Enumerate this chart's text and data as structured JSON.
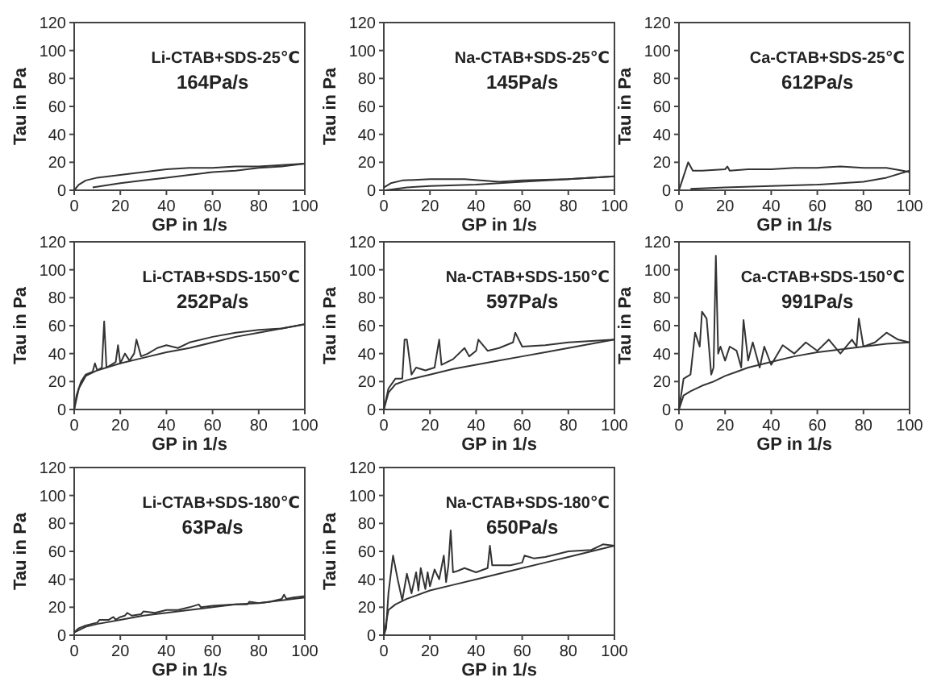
{
  "chart_data": [
    {
      "type": "line",
      "annotations": [
        "Li-CTAB+SDS-25℃",
        "164Pa/s"
      ],
      "xlabel": "GP  in 1/s",
      "ylabel": "Tau  in Pa",
      "xlim": [
        0,
        100
      ],
      "ylim": [
        0,
        120
      ],
      "xticks": [
        0,
        20,
        40,
        60,
        80,
        100
      ],
      "yticks": [
        0,
        20,
        40,
        60,
        80,
        100,
        120
      ],
      "series": [
        {
          "color": "#333333",
          "x": [
            0,
            2,
            5,
            10,
            20,
            30,
            40,
            50,
            60,
            70,
            80,
            90,
            100
          ],
          "values": [
            0,
            4,
            7,
            9,
            11,
            13,
            15,
            16,
            16,
            17,
            17,
            18,
            19
          ]
        },
        {
          "color": "#333333",
          "x": [
            8,
            20,
            30,
            40,
            50,
            60,
            70,
            80,
            90,
            100
          ],
          "values": [
            2,
            5,
            7,
            9,
            11,
            13,
            14,
            16,
            17,
            19
          ]
        }
      ]
    },
    {
      "type": "line",
      "annotations": [
        "Na-CTAB+SDS-25℃",
        "145Pa/s"
      ],
      "xlabel": "GP  in 1/s",
      "ylabel": "Tau  in Pa",
      "xlim": [
        0,
        100
      ],
      "ylim": [
        0,
        120
      ],
      "xticks": [
        0,
        20,
        40,
        60,
        80,
        100
      ],
      "yticks": [
        0,
        20,
        40,
        60,
        80,
        100,
        120
      ],
      "series": [
        {
          "color": "#333333",
          "x": [
            0,
            3,
            8,
            20,
            35,
            50,
            60,
            80,
            100
          ],
          "values": [
            2,
            5,
            7,
            8,
            8,
            6,
            7,
            8,
            10
          ]
        },
        {
          "color": "#333333",
          "x": [
            1,
            10,
            20,
            40,
            60,
            80,
            100
          ],
          "values": [
            0,
            2,
            3,
            4,
            6,
            8,
            10
          ]
        }
      ]
    },
    {
      "type": "line",
      "annotations": [
        "Ca-CTAB+SDS-25℃",
        "612Pa/s"
      ],
      "xlabel": "GP  in 1/s",
      "ylabel": "Tau  in Pa",
      "xlim": [
        0,
        100
      ],
      "ylim": [
        0,
        120
      ],
      "xticks": [
        0,
        20,
        40,
        60,
        80,
        100
      ],
      "yticks": [
        0,
        20,
        40,
        60,
        80,
        100,
        120
      ],
      "series": [
        {
          "color": "#333333",
          "x": [
            0,
            2,
            4,
            6,
            10,
            20,
            21,
            22,
            30,
            40,
            50,
            60,
            70,
            80,
            90,
            97,
            100
          ],
          "values": [
            0,
            10,
            20,
            14,
            14,
            15,
            17,
            14,
            15,
            15,
            16,
            16,
            17,
            16,
            16,
            14,
            13
          ]
        },
        {
          "color": "#333333",
          "x": [
            5,
            20,
            40,
            60,
            80,
            90,
            100
          ],
          "values": [
            1,
            2,
            3,
            4,
            6,
            9,
            14
          ]
        }
      ]
    },
    {
      "type": "line",
      "annotations": [
        "Li-CTAB+SDS-150℃",
        "252Pa/s"
      ],
      "xlabel": "GP  in 1/s",
      "ylabel": "Tau  in Pa",
      "xlim": [
        0,
        100
      ],
      "ylim": [
        0,
        120
      ],
      "xticks": [
        0,
        20,
        40,
        60,
        80,
        100
      ],
      "yticks": [
        0,
        20,
        40,
        60,
        80,
        100,
        120
      ],
      "series": [
        {
          "color": "#333333",
          "x": [
            0,
            1,
            3,
            5,
            8,
            9,
            10,
            12,
            13,
            14,
            16,
            18,
            19,
            20,
            22,
            24,
            26,
            27,
            29,
            32,
            36,
            40,
            45,
            50,
            60,
            70,
            80,
            90,
            100
          ],
          "values": [
            0,
            10,
            20,
            25,
            27,
            33,
            28,
            30,
            63,
            30,
            32,
            34,
            46,
            33,
            40,
            35,
            40,
            50,
            38,
            40,
            44,
            46,
            44,
            48,
            52,
            55,
            57,
            58,
            61
          ]
        },
        {
          "color": "#333333",
          "x": [
            0,
            2,
            5,
            10,
            20,
            30,
            40,
            50,
            60,
            70,
            80,
            90,
            100
          ],
          "values": [
            0,
            15,
            24,
            28,
            33,
            37,
            41,
            44,
            48,
            52,
            55,
            58,
            61
          ]
        }
      ]
    },
    {
      "type": "line",
      "annotations": [
        "Na-CTAB+SDS-150℃",
        "597Pa/s"
      ],
      "xlabel": "GP  in 1/s",
      "ylabel": "Tau  in Pa",
      "xlim": [
        0,
        100
      ],
      "ylim": [
        0,
        120
      ],
      "xticks": [
        0,
        20,
        40,
        60,
        80,
        100
      ],
      "yticks": [
        0,
        20,
        40,
        60,
        80,
        100,
        120
      ],
      "series": [
        {
          "color": "#333333",
          "x": [
            0,
            2,
            5,
            8,
            9,
            10,
            12,
            14,
            18,
            22,
            24,
            25,
            30,
            35,
            37,
            40,
            41,
            45,
            50,
            56,
            57,
            60,
            70,
            80,
            90,
            100
          ],
          "values": [
            0,
            15,
            22,
            22,
            50,
            50,
            25,
            30,
            28,
            30,
            50,
            32,
            36,
            44,
            38,
            42,
            50,
            42,
            44,
            48,
            55,
            45,
            46,
            48,
            49,
            50
          ]
        },
        {
          "color": "#333333",
          "x": [
            0,
            2,
            5,
            10,
            20,
            30,
            40,
            50,
            60,
            70,
            80,
            90,
            100
          ],
          "values": [
            0,
            12,
            18,
            21,
            25,
            29,
            32,
            35,
            38,
            41,
            44,
            47,
            50
          ]
        }
      ]
    },
    {
      "type": "line",
      "annotations": [
        "Ca-CTAB+SDS-150℃",
        "991Pa/s"
      ],
      "xlabel": "GP  in 1/s",
      "ylabel": "Tau  in Pa",
      "xlim": [
        0,
        100
      ],
      "ylim": [
        0,
        120
      ],
      "xticks": [
        0,
        20,
        40,
        60,
        80,
        100
      ],
      "yticks": [
        0,
        20,
        40,
        60,
        80,
        100,
        120
      ],
      "series": [
        {
          "color": "#333333",
          "x": [
            0,
            2,
            5,
            7,
            9,
            10,
            12,
            14,
            15,
            16,
            17,
            18,
            20,
            22,
            25,
            27,
            28,
            30,
            32,
            35,
            37,
            40,
            45,
            50,
            55,
            60,
            65,
            70,
            75,
            77,
            78,
            80,
            85,
            90,
            95,
            100
          ],
          "values": [
            0,
            22,
            25,
            55,
            45,
            70,
            65,
            25,
            30,
            110,
            40,
            45,
            35,
            45,
            42,
            30,
            64,
            35,
            48,
            30,
            45,
            32,
            46,
            40,
            48,
            42,
            50,
            40,
            50,
            45,
            65,
            45,
            48,
            55,
            50,
            48
          ]
        },
        {
          "color": "#333333",
          "x": [
            0,
            2,
            5,
            10,
            15,
            20,
            25,
            30,
            40,
            50,
            60,
            70,
            80,
            90,
            100
          ],
          "values": [
            0,
            10,
            13,
            17,
            20,
            24,
            27,
            30,
            34,
            38,
            41,
            43,
            45,
            47,
            48
          ]
        }
      ]
    },
    {
      "type": "line",
      "annotations": [
        "Li-CTAB+SDS-180℃",
        "63Pa/s"
      ],
      "xlabel": "GP  in 1/s",
      "ylabel": "Tau  in Pa",
      "xlim": [
        0,
        100
      ],
      "ylim": [
        0,
        120
      ],
      "xticks": [
        0,
        20,
        40,
        60,
        80,
        100
      ],
      "yticks": [
        0,
        20,
        40,
        60,
        80,
        100,
        120
      ],
      "series": [
        {
          "color": "#333333",
          "x": [
            0,
            2,
            5,
            10,
            11,
            15,
            17,
            18,
            20,
            22,
            23,
            25,
            29,
            30,
            35,
            40,
            45,
            50,
            54,
            55,
            60,
            70,
            75,
            76,
            80,
            85,
            90,
            91,
            92,
            95,
            100
          ],
          "values": [
            2,
            5,
            7,
            9,
            11,
            11,
            13,
            11,
            13,
            14,
            16,
            14,
            15,
            17,
            16,
            18,
            18,
            20,
            22,
            20,
            21,
            22,
            22,
            24,
            23,
            24,
            26,
            29,
            26,
            27,
            28
          ]
        },
        {
          "color": "#333333",
          "x": [
            0,
            5,
            10,
            20,
            30,
            40,
            50,
            60,
            70,
            80,
            90,
            100
          ],
          "values": [
            2,
            6,
            8,
            11,
            14,
            16,
            18,
            20,
            22,
            23,
            25,
            27
          ]
        }
      ]
    },
    {
      "type": "line",
      "annotations": [
        "Na-CTAB+SDS-180℃",
        "650Pa/s"
      ],
      "xlabel": "GP  in 1/s",
      "ylabel": "Tau  in Pa",
      "xlim": [
        0,
        100
      ],
      "ylim": [
        0,
        120
      ],
      "xticks": [
        0,
        20,
        40,
        60,
        80,
        100
      ],
      "yticks": [
        0,
        20,
        40,
        60,
        80,
        100,
        120
      ],
      "series": [
        {
          "color": "#333333",
          "x": [
            0,
            1,
            2,
            4,
            6,
            8,
            10,
            12,
            14,
            15,
            16,
            18,
            19,
            20,
            22,
            24,
            26,
            27,
            28,
            29,
            30,
            32,
            35,
            40,
            45,
            46,
            47,
            48,
            50,
            55,
            60,
            61,
            65,
            70,
            80,
            90,
            95,
            100
          ],
          "values": [
            0,
            5,
            30,
            57,
            40,
            25,
            44,
            30,
            45,
            32,
            48,
            33,
            45,
            35,
            47,
            40,
            57,
            38,
            50,
            75,
            45,
            46,
            48,
            45,
            48,
            64,
            50,
            50,
            50,
            50,
            52,
            57,
            55,
            56,
            60,
            61,
            65,
            64
          ]
        },
        {
          "color": "#333333",
          "x": [
            0,
            2,
            5,
            10,
            20,
            30,
            40,
            50,
            60,
            70,
            80,
            90,
            100
          ],
          "values": [
            0,
            18,
            22,
            26,
            32,
            36,
            40,
            44,
            48,
            52,
            56,
            60,
            64
          ]
        }
      ]
    }
  ]
}
